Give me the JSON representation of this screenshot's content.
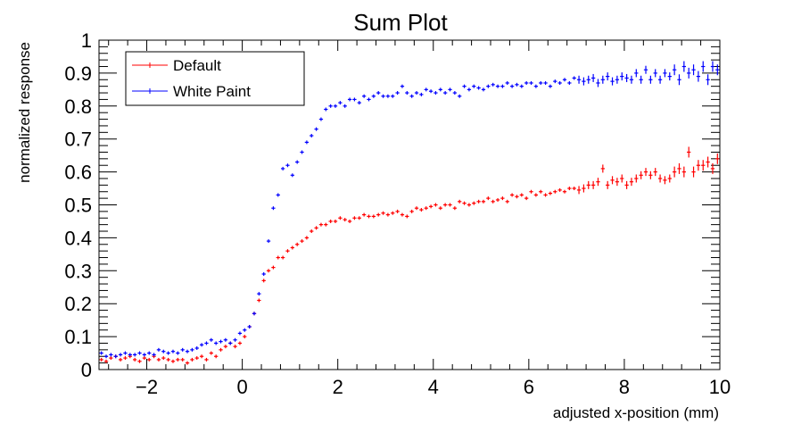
{
  "chart_data": {
    "type": "scatter",
    "title": "Sum Plot",
    "xlabel": "adjusted x-position (mm)",
    "ylabel": "normalized response",
    "xlim": [
      -3,
      10
    ],
    "ylim": [
      0,
      1
    ],
    "x_ticks": [
      -2,
      0,
      2,
      4,
      6,
      8,
      10
    ],
    "x_tick_labels": [
      "−2",
      "0",
      "2",
      "4",
      "6",
      "8",
      "10"
    ],
    "y_ticks": [
      0,
      0.1,
      0.2,
      0.3,
      0.4,
      0.5,
      0.6,
      0.7,
      0.8,
      0.9,
      1
    ],
    "y_tick_labels": [
      "0",
      "0.1",
      "0.2",
      "0.3",
      "0.4",
      "0.5",
      "0.6",
      "0.7",
      "0.8",
      "0.9",
      "1"
    ],
    "grid": false,
    "legend_position": "top-left",
    "x": [
      -2.95,
      -2.85,
      -2.75,
      -2.65,
      -2.55,
      -2.45,
      -2.35,
      -2.25,
      -2.15,
      -2.05,
      -1.95,
      -1.85,
      -1.75,
      -1.65,
      -1.55,
      -1.45,
      -1.35,
      -1.25,
      -1.15,
      -1.05,
      -0.95,
      -0.85,
      -0.75,
      -0.65,
      -0.55,
      -0.45,
      -0.35,
      -0.25,
      -0.15,
      -0.05,
      0.05,
      0.15,
      0.25,
      0.35,
      0.45,
      0.55,
      0.65,
      0.75,
      0.85,
      0.95,
      1.05,
      1.15,
      1.25,
      1.35,
      1.45,
      1.55,
      1.65,
      1.75,
      1.85,
      1.95,
      2.05,
      2.15,
      2.25,
      2.35,
      2.45,
      2.55,
      2.65,
      2.75,
      2.85,
      2.95,
      3.05,
      3.15,
      3.25,
      3.35,
      3.45,
      3.55,
      3.65,
      3.75,
      3.85,
      3.95,
      4.05,
      4.15,
      4.25,
      4.35,
      4.45,
      4.55,
      4.65,
      4.75,
      4.85,
      4.95,
      5.05,
      5.15,
      5.25,
      5.35,
      5.45,
      5.55,
      5.65,
      5.75,
      5.85,
      5.95,
      6.05,
      6.15,
      6.25,
      6.35,
      6.45,
      6.55,
      6.65,
      6.75,
      6.85,
      6.95,
      7.05,
      7.15,
      7.25,
      7.35,
      7.45,
      7.55,
      7.65,
      7.75,
      7.85,
      7.95,
      8.05,
      8.15,
      8.25,
      8.35,
      8.45,
      8.55,
      8.65,
      8.75,
      8.85,
      8.95,
      9.05,
      9.15,
      9.25,
      9.35,
      9.45,
      9.55,
      9.65,
      9.75,
      9.85,
      9.95
    ],
    "series": [
      {
        "name": "Default",
        "color": "#ff0000",
        "values": [
          0.03,
          0.025,
          0.035,
          0.04,
          0.03,
          0.035,
          0.04,
          0.03,
          0.025,
          0.035,
          0.03,
          0.04,
          0.03,
          0.035,
          0.03,
          0.025,
          0.03,
          0.03,
          0.02,
          0.03,
          0.035,
          0.04,
          0.03,
          0.05,
          0.04,
          0.06,
          0.07,
          0.08,
          0.07,
          0.08,
          0.1,
          0.13,
          0.17,
          0.21,
          0.27,
          0.3,
          0.31,
          0.34,
          0.34,
          0.36,
          0.37,
          0.38,
          0.39,
          0.4,
          0.42,
          0.43,
          0.44,
          0.44,
          0.45,
          0.45,
          0.46,
          0.455,
          0.45,
          0.46,
          0.46,
          0.47,
          0.465,
          0.465,
          0.47,
          0.475,
          0.47,
          0.475,
          0.48,
          0.47,
          0.465,
          0.48,
          0.49,
          0.485,
          0.49,
          0.495,
          0.5,
          0.49,
          0.5,
          0.5,
          0.49,
          0.51,
          0.505,
          0.5,
          0.505,
          0.51,
          0.51,
          0.52,
          0.51,
          0.515,
          0.52,
          0.51,
          0.53,
          0.525,
          0.53,
          0.52,
          0.54,
          0.53,
          0.54,
          0.53,
          0.535,
          0.54,
          0.545,
          0.54,
          0.55,
          0.55,
          0.545,
          0.55,
          0.56,
          0.56,
          0.57,
          0.61,
          0.56,
          0.575,
          0.57,
          0.58,
          0.56,
          0.57,
          0.58,
          0.59,
          0.6,
          0.59,
          0.6,
          0.58,
          0.575,
          0.58,
          0.6,
          0.61,
          0.6,
          0.66,
          0.6,
          0.62,
          0.62,
          0.63,
          0.61,
          0.64
        ]
      },
      {
        "name": "White Paint",
        "color": "#0000ff",
        "values": [
          0.05,
          0.04,
          0.045,
          0.04,
          0.045,
          0.05,
          0.045,
          0.045,
          0.05,
          0.045,
          0.05,
          0.045,
          0.06,
          0.055,
          0.05,
          0.055,
          0.05,
          0.06,
          0.055,
          0.06,
          0.065,
          0.075,
          0.08,
          0.09,
          0.08,
          0.085,
          0.09,
          0.08,
          0.09,
          0.11,
          0.12,
          0.13,
          0.17,
          0.23,
          0.29,
          0.39,
          0.49,
          0.53,
          0.61,
          0.62,
          0.59,
          0.63,
          0.66,
          0.69,
          0.71,
          0.73,
          0.76,
          0.79,
          0.8,
          0.8,
          0.81,
          0.8,
          0.82,
          0.82,
          0.81,
          0.83,
          0.82,
          0.83,
          0.84,
          0.83,
          0.83,
          0.83,
          0.84,
          0.86,
          0.84,
          0.83,
          0.84,
          0.835,
          0.85,
          0.845,
          0.84,
          0.85,
          0.84,
          0.85,
          0.84,
          0.83,
          0.86,
          0.85,
          0.86,
          0.855,
          0.85,
          0.86,
          0.865,
          0.86,
          0.86,
          0.87,
          0.86,
          0.865,
          0.86,
          0.87,
          0.87,
          0.86,
          0.87,
          0.87,
          0.86,
          0.875,
          0.87,
          0.88,
          0.87,
          0.885,
          0.88,
          0.875,
          0.88,
          0.885,
          0.87,
          0.88,
          0.89,
          0.875,
          0.88,
          0.89,
          0.885,
          0.88,
          0.9,
          0.88,
          0.91,
          0.88,
          0.9,
          0.88,
          0.9,
          0.89,
          0.91,
          0.88,
          0.92,
          0.9,
          0.91,
          0.89,
          0.92,
          0.88,
          0.92,
          0.91
        ]
      }
    ]
  }
}
